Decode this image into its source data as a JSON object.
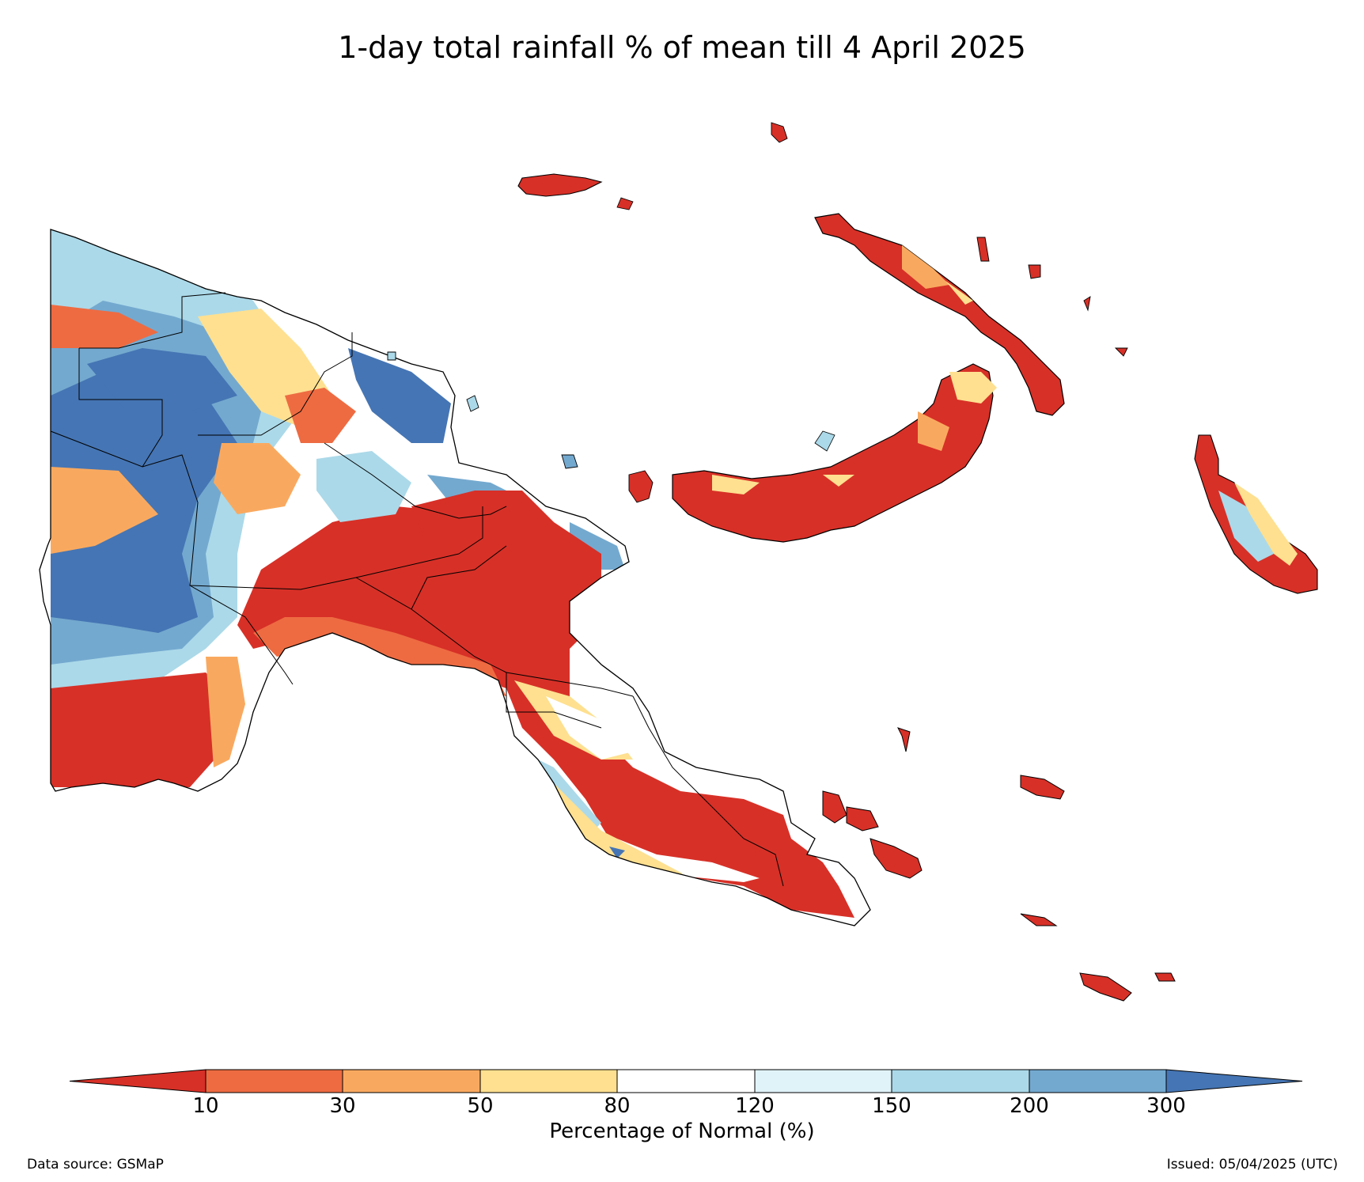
{
  "title": "1-day total rainfall % of mean till 4 April 2025",
  "legend": {
    "label": "Percentage of Normal (%)",
    "ticks": [
      "10",
      "30",
      "50",
      "80",
      "120",
      "150",
      "200",
      "300"
    ],
    "bins": [
      {
        "range": "<10",
        "color": "#d73027"
      },
      {
        "range": "10-30",
        "color": "#ee6b42"
      },
      {
        "range": "30-50",
        "color": "#f9a95f"
      },
      {
        "range": "50-80",
        "color": "#fee090"
      },
      {
        "range": "80-120",
        "color": "#ffffff"
      },
      {
        "range": "120-150",
        "color": "#e0f3f8"
      },
      {
        "range": "150-200",
        "color": "#abd9e9"
      },
      {
        "range": "200-300",
        "color": "#74a9cf"
      },
      {
        "range": ">300",
        "color": "#4575b4"
      }
    ]
  },
  "footer": {
    "source": "Data source: GSMaP",
    "issued": "Issued: 05/04/2025 (UTC)"
  }
}
